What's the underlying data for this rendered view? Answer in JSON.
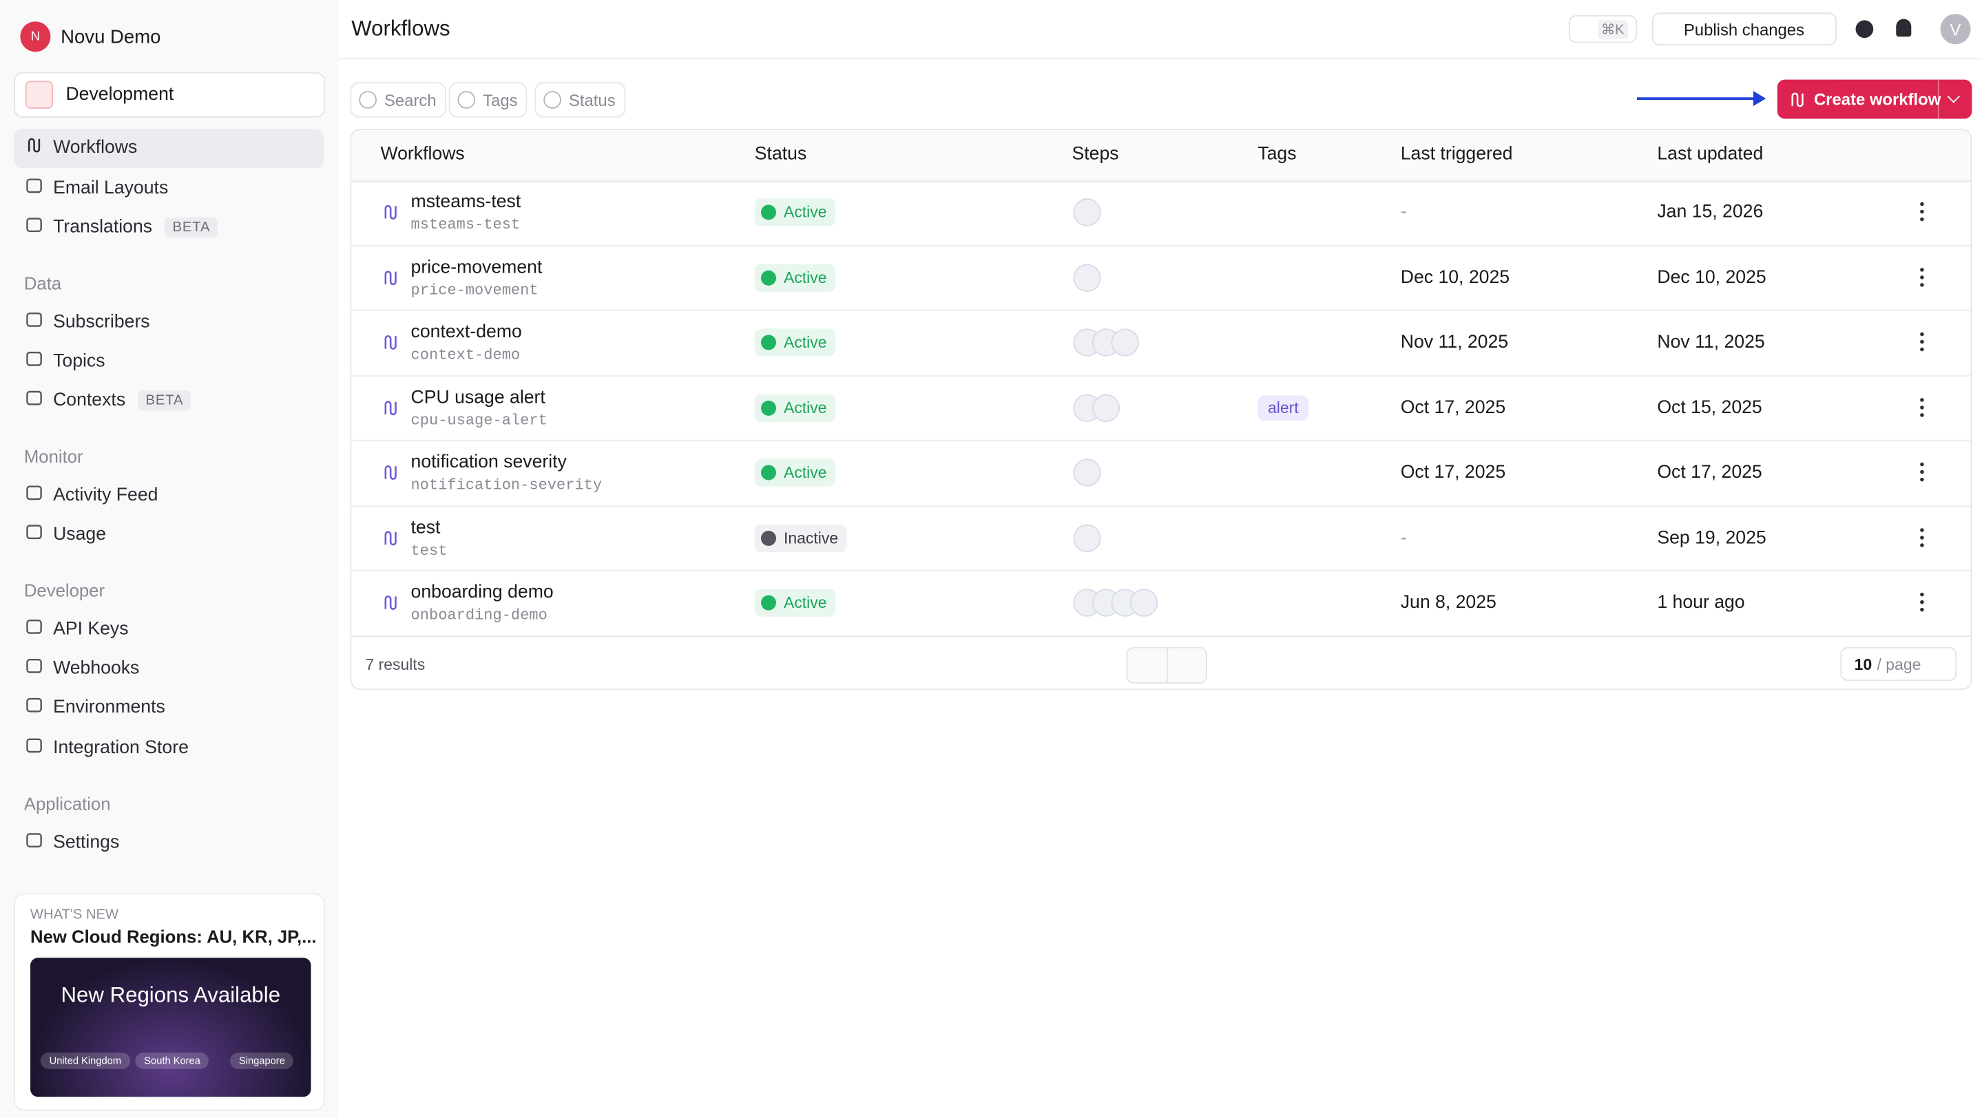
{
  "sidebar": {
    "org_initial": "N",
    "org_name": "Novu Demo",
    "environment": "Development",
    "groups": [
      {
        "items": [
          {
            "label": "Workflows"
          },
          {
            "label": "Email Layouts"
          },
          {
            "label": "Translations",
            "badge": "BETA"
          }
        ]
      },
      {
        "title": "Data",
        "items": [
          {
            "label": "Subscribers"
          },
          {
            "label": "Topics"
          },
          {
            "label": "Contexts",
            "badge": "BETA"
          }
        ]
      },
      {
        "title": "Monitor",
        "items": [
          {
            "label": "Activity Feed"
          },
          {
            "label": "Usage"
          }
        ]
      },
      {
        "title": "Developer",
        "items": [
          {
            "label": "API Keys"
          },
          {
            "label": "Webhooks"
          },
          {
            "label": "Environments"
          },
          {
            "label": "Integration Store"
          }
        ]
      },
      {
        "title": "Application",
        "items": [
          {
            "label": "Settings"
          }
        ]
      }
    ],
    "whats_new": {
      "kicker": "WHAT'S NEW",
      "title": "New Cloud Regions: AU, KR, JP,...",
      "image_title": "New Regions Available",
      "regions": [
        "United Kingdom",
        "South Korea",
        "Singapore"
      ]
    }
  },
  "header": {
    "title": "Workflows",
    "shortcut": "⌘K",
    "publish": "Publish changes",
    "avatar": "V"
  },
  "toolbar": {
    "filters": [
      "Search",
      "Tags",
      "Status"
    ],
    "create": "Create workflow"
  },
  "table": {
    "columns": [
      "Workflows",
      "Status",
      "Steps",
      "Tags",
      "Last triggered",
      "Last updated"
    ],
    "rows": [
      {
        "name": "msteams-test",
        "id": "msteams-test",
        "status": "Active",
        "last_triggered": "-",
        "last_updated": "Jan 15, 2026"
      },
      {
        "name": "price-movement",
        "id": "price-movement",
        "status": "Active",
        "last_triggered": "Dec 10, 2025",
        "last_updated": "Dec 10, 2025"
      },
      {
        "name": "context-demo",
        "id": "context-demo",
        "status": "Active",
        "last_triggered": "Nov 11, 2025",
        "last_updated": "Nov 11, 2025"
      },
      {
        "name": "CPU usage alert",
        "id": "cpu-usage-alert",
        "status": "Active",
        "tag": "alert",
        "last_triggered": "Oct 17, 2025",
        "last_updated": "Oct 15, 2025"
      },
      {
        "name": "notification severity",
        "id": "notification-severity",
        "status": "Active",
        "last_triggered": "Oct 17, 2025",
        "last_updated": "Oct 17, 2025"
      },
      {
        "name": "test",
        "id": "test",
        "status": "Inactive",
        "last_triggered": "-",
        "last_updated": "Sep 19, 2025"
      },
      {
        "name": "onboarding demo",
        "id": "onboarding-demo",
        "status": "Active",
        "last_triggered": "Jun 8, 2025",
        "last_updated": "1 hour ago"
      }
    ]
  },
  "footer": {
    "results": "7 results",
    "per_page": "10",
    "per_page_suffix": "/ page"
  }
}
